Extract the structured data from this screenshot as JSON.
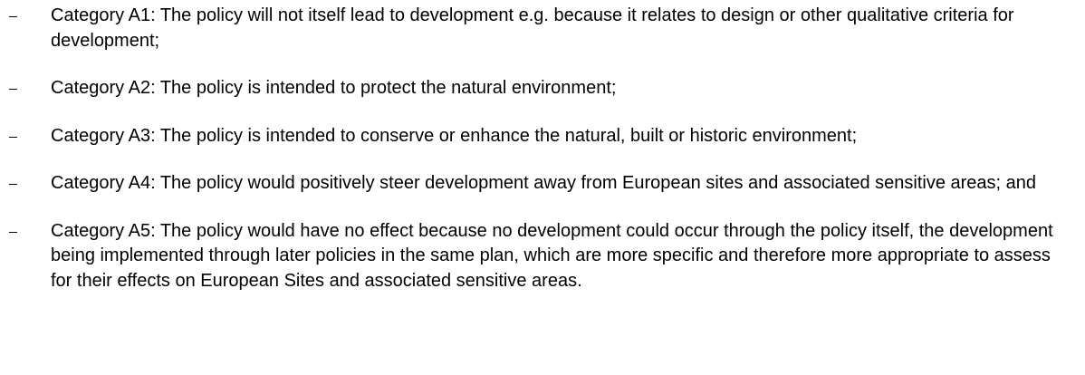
{
  "list": {
    "items": [
      "Category A1: The policy will not itself lead to development e.g. because it relates to design or other qualitative criteria for development;",
      "Category A2: The policy is intended to protect the natural environment;",
      "Category A3: The policy is intended to conserve or enhance the natural, built or historic environment;",
      "Category A4: The policy would positively steer development away from European sites and associated sensitive areas; and",
      "Category A5: The policy would have no effect because no development could occur through the policy itself, the development being implemented through later policies in the same plan, which are more specific and therefore more appropriate to assess for their effects on European Sites and associated sensitive areas."
    ]
  }
}
